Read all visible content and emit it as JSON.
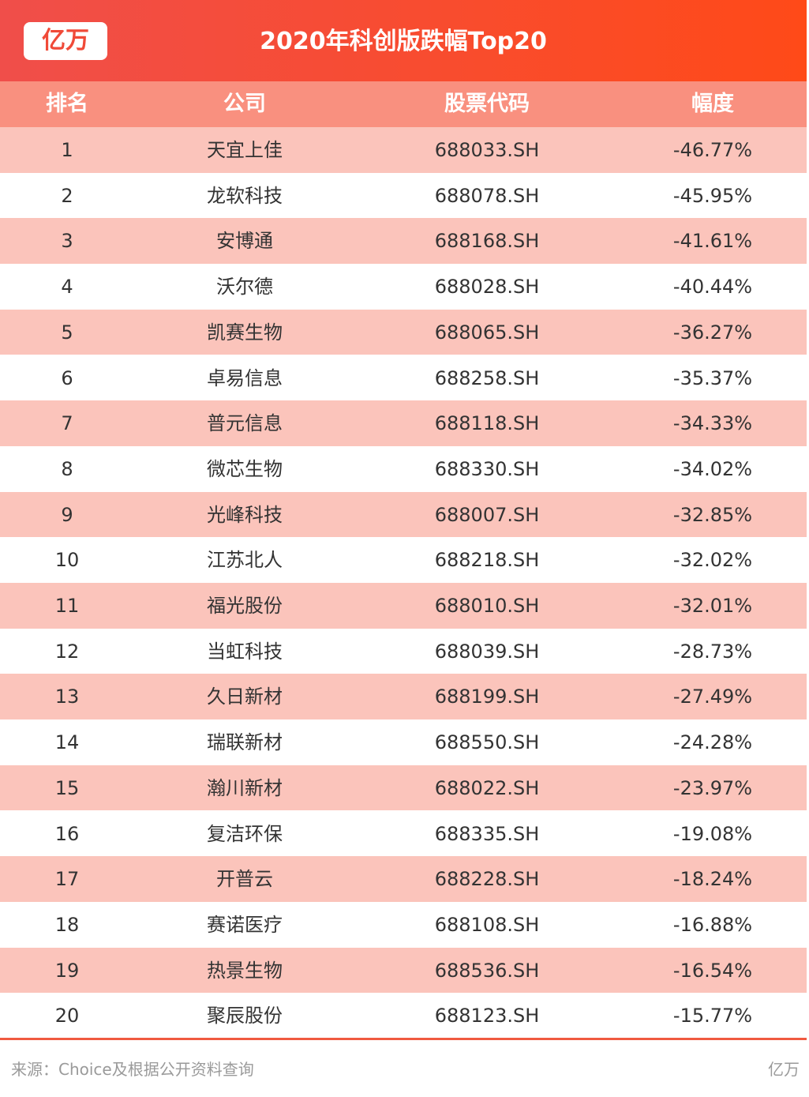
{
  "header": {
    "logo": "亿万",
    "title": "2020年科创版跌幅Top20"
  },
  "table": {
    "columns": [
      "排名",
      "公司",
      "股票代码",
      "幅度"
    ],
    "rows": [
      [
        "1",
        "天宜上佳",
        "688033.SH",
        "-46.77%"
      ],
      [
        "2",
        "龙软科技",
        "688078.SH",
        "-45.95%"
      ],
      [
        "3",
        "安博通",
        "688168.SH",
        "-41.61%"
      ],
      [
        "4",
        "沃尔德",
        "688028.SH",
        "-40.44%"
      ],
      [
        "5",
        "凯赛生物",
        "688065.SH",
        "-36.27%"
      ],
      [
        "6",
        "卓易信息",
        "688258.SH",
        "-35.37%"
      ],
      [
        "7",
        "普元信息",
        "688118.SH",
        "-34.33%"
      ],
      [
        "8",
        "微芯生物",
        "688330.SH",
        "-34.02%"
      ],
      [
        "9",
        "光峰科技",
        "688007.SH",
        "-32.85%"
      ],
      [
        "10",
        "江苏北人",
        "688218.SH",
        "-32.02%"
      ],
      [
        "11",
        "福光股份",
        "688010.SH",
        "-32.01%"
      ],
      [
        "12",
        "当虹科技",
        "688039.SH",
        "-28.73%"
      ],
      [
        "13",
        "久日新材",
        "688199.SH",
        "-27.49%"
      ],
      [
        "14",
        "瑞联新材",
        "688550.SH",
        "-24.28%"
      ],
      [
        "15",
        "瀚川新材",
        "688022.SH",
        "-23.97%"
      ],
      [
        "16",
        "复洁环保",
        "688335.SH",
        "-19.08%"
      ],
      [
        "17",
        "开普云",
        "688228.SH",
        "-18.24%"
      ],
      [
        "18",
        "赛诺医疗",
        "688108.SH",
        "-16.88%"
      ],
      [
        "19",
        "热景生物",
        "688536.SH",
        "-16.54%"
      ],
      [
        "20",
        "聚辰股份",
        "688123.SH",
        "-15.77%"
      ]
    ]
  },
  "footer": {
    "source": "来源：Choice及根据公开资料查询",
    "brand": "亿万"
  }
}
